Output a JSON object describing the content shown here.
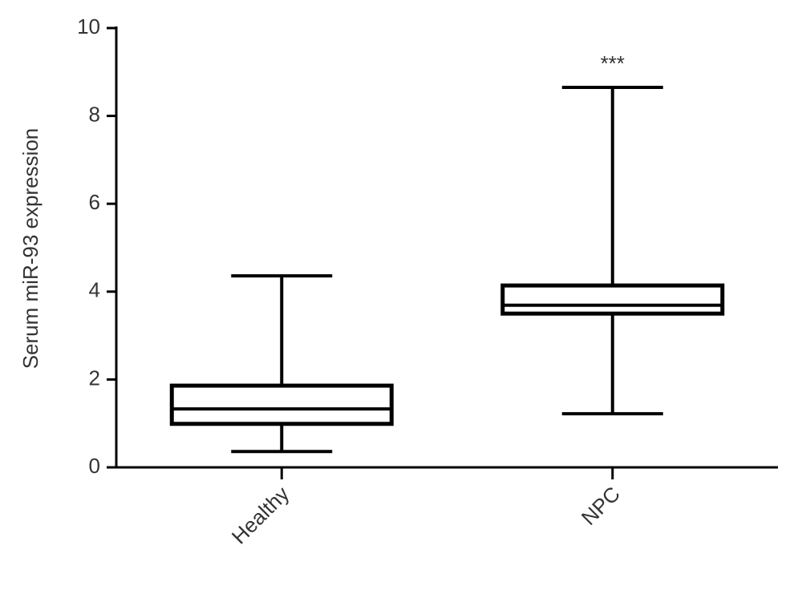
{
  "chart_data": {
    "type": "box",
    "ylabel": "Serum miR-93 expression",
    "categories": [
      "Healthy",
      "NPC"
    ],
    "min": [
      0.36,
      1.22
    ],
    "q1": [
      0.99,
      3.5
    ],
    "median": [
      1.33,
      3.69
    ],
    "q3": [
      1.86,
      4.14
    ],
    "max": [
      4.36,
      8.65
    ],
    "color": "#000000",
    "ylim": [
      0,
      10
    ],
    "yticks": [
      0,
      2,
      4,
      6,
      8,
      10
    ],
    "annotations": [
      {
        "text": "***"
      }
    ]
  }
}
